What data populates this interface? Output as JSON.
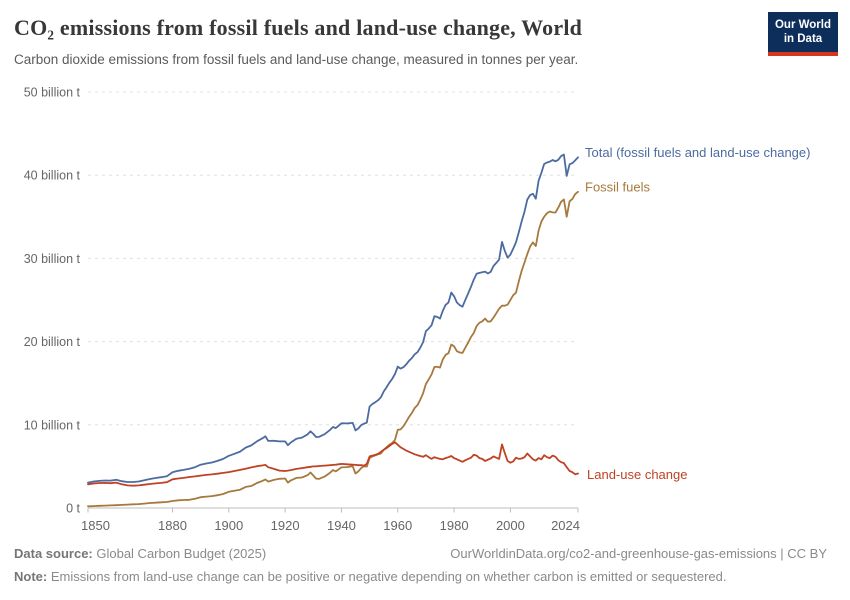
{
  "header": {
    "logo": {
      "line1": "Our World",
      "line2": "in Data",
      "bg_color": "#0d2e5a",
      "stripe_color": "#d8351e"
    }
  },
  "footer": {
    "source_label": "Data source:",
    "source_value": " Global Carbon Budget (2025)",
    "credit": "OurWorldinData.org/co2-and-greenhouse-gas-emissions | CC BY",
    "note_label": "Note:",
    "note_value": " Emissions from land-use change can be positive or negative depending on whether carbon is emitted or sequestered."
  },
  "chart_data": {
    "type": "line",
    "title": "CO₂ emissions from fossil fuels and land-use change, World",
    "subtitle": "Carbon dioxide emissions from fossil fuels and land-use change, measured in tonnes per year.",
    "xlabel": "",
    "ylabel": "",
    "unit": "billion tonnes of CO₂ per year",
    "xlim": [
      1850,
      2024
    ],
    "ylim": [
      0,
      50
    ],
    "grid": "dashed-horizontal",
    "legend_position": "end-of-line-labels",
    "x_ticks": [
      1850,
      1880,
      1900,
      1920,
      1940,
      1960,
      1980,
      2000,
      2024
    ],
    "y_ticks": [
      {
        "v": 0,
        "label": "0 t"
      },
      {
        "v": 10,
        "label": "10 billion t"
      },
      {
        "v": 20,
        "label": "20 billion t"
      },
      {
        "v": 30,
        "label": "30 billion t"
      },
      {
        "v": 40,
        "label": "40 billion t"
      },
      {
        "v": 50,
        "label": "50 billion t"
      }
    ],
    "x": [
      1850,
      1852,
      1854,
      1856,
      1858,
      1860,
      1862,
      1864,
      1866,
      1868,
      1870,
      1872,
      1874,
      1876,
      1878,
      1880,
      1882,
      1884,
      1886,
      1888,
      1890,
      1892,
      1894,
      1896,
      1898,
      1900,
      1902,
      1904,
      1906,
      1908,
      1910,
      1912,
      1913,
      1914,
      1916,
      1918,
      1920,
      1921,
      1922,
      1924,
      1926,
      1928,
      1929,
      1930,
      1931,
      1932,
      1934,
      1936,
      1937,
      1938,
      1940,
      1942,
      1944,
      1945,
      1946,
      1947,
      1948,
      1949,
      1950,
      1951,
      1952,
      1953,
      1954,
      1955,
      1956,
      1957,
      1958,
      1959,
      1960,
      1961,
      1962,
      1963,
      1964,
      1965,
      1966,
      1967,
      1968,
      1969,
      1970,
      1971,
      1972,
      1973,
      1974,
      1975,
      1976,
      1977,
      1978,
      1979,
      1980,
      1981,
      1982,
      1983,
      1984,
      1985,
      1986,
      1987,
      1988,
      1989,
      1990,
      1991,
      1992,
      1993,
      1994,
      1995,
      1996,
      1997,
      1998,
      1999,
      2000,
      2001,
      2002,
      2003,
      2004,
      2005,
      2006,
      2007,
      2008,
      2009,
      2010,
      2011,
      2012,
      2013,
      2014,
      2015,
      2016,
      2017,
      2018,
      2019,
      2020,
      2021,
      2022,
      2023,
      2024
    ],
    "series": [
      {
        "name": "Total (fossil fuels and land-use change)",
        "color": "#4c6ba1",
        "values": [
          3.05,
          3.18,
          3.26,
          3.31,
          3.29,
          3.39,
          3.22,
          3.13,
          3.12,
          3.19,
          3.33,
          3.48,
          3.6,
          3.7,
          3.82,
          4.29,
          4.47,
          4.58,
          4.71,
          4.9,
          5.2,
          5.35,
          5.47,
          5.66,
          5.9,
          6.27,
          6.52,
          6.78,
          7.26,
          7.52,
          8.02,
          8.39,
          8.62,
          8.07,
          8.08,
          8.01,
          8.0,
          7.55,
          7.87,
          8.32,
          8.46,
          8.86,
          9.22,
          8.91,
          8.53,
          8.55,
          8.87,
          9.4,
          9.74,
          9.6,
          10.18,
          10.17,
          10.23,
          9.33,
          9.55,
          9.96,
          10.13,
          10.27,
          12.2,
          12.5,
          12.7,
          12.96,
          13.3,
          14.0,
          14.5,
          15.05,
          15.5,
          16.1,
          17.0,
          16.75,
          16.92,
          17.26,
          17.69,
          18.03,
          18.47,
          18.72,
          19.28,
          19.94,
          21.25,
          21.56,
          21.97,
          23.05,
          22.97,
          22.77,
          23.7,
          24.41,
          24.71,
          25.9,
          25.44,
          24.7,
          24.39,
          24.19,
          25.04,
          25.79,
          26.6,
          27.45,
          28.16,
          28.26,
          28.34,
          28.41,
          28.19,
          28.39,
          29.09,
          29.46,
          29.86,
          31.98,
          30.91,
          30.08,
          30.46,
          31.18,
          31.93,
          33.18,
          34.47,
          35.61,
          37.07,
          37.62,
          37.77,
          37.18,
          39.34,
          40.29,
          41.36,
          41.53,
          41.64,
          41.83,
          41.67,
          41.85,
          42.3,
          42.48,
          39.91,
          41.31,
          41.45,
          41.78,
          42.15
        ]
      },
      {
        "name": "Fossil fuels",
        "color": "#a6793d",
        "values": [
          0.2,
          0.23,
          0.26,
          0.29,
          0.31,
          0.34,
          0.37,
          0.41,
          0.44,
          0.47,
          0.53,
          0.6,
          0.64,
          0.68,
          0.72,
          0.84,
          0.92,
          0.96,
          0.99,
          1.1,
          1.3,
          1.37,
          1.43,
          1.54,
          1.68,
          1.95,
          2.07,
          2.2,
          2.54,
          2.64,
          3.0,
          3.27,
          3.44,
          3.17,
          3.38,
          3.51,
          3.55,
          3.05,
          3.32,
          3.62,
          3.66,
          3.96,
          4.27,
          3.91,
          3.53,
          3.5,
          3.77,
          4.25,
          4.56,
          4.4,
          4.88,
          4.92,
          5.03,
          4.15,
          4.4,
          4.81,
          5.03,
          4.97,
          6.0,
          6.2,
          6.32,
          6.46,
          6.55,
          7.0,
          7.3,
          7.6,
          7.8,
          8.2,
          9.4,
          9.45,
          9.82,
          10.36,
          10.94,
          11.43,
          12.02,
          12.37,
          13.03,
          13.79,
          14.9,
          15.46,
          16.07,
          16.95,
          16.97,
          16.87,
          17.85,
          18.41,
          18.61,
          19.65,
          19.44,
          18.85,
          18.69,
          18.64,
          19.29,
          19.89,
          20.55,
          21.05,
          21.86,
          22.26,
          22.44,
          22.76,
          22.39,
          22.44,
          22.89,
          23.41,
          23.96,
          24.33,
          24.31,
          24.43,
          25.01,
          25.58,
          25.88,
          27.28,
          28.52,
          29.51,
          30.52,
          31.42,
          31.92,
          31.48,
          33.34,
          34.44,
          35.01,
          35.43,
          35.64,
          35.53,
          35.52,
          36.1,
          36.8,
          37.08,
          35.01,
          36.86,
          37.15,
          37.73,
          38.0
        ]
      },
      {
        "name": "Land-use change",
        "color": "#bf4224",
        "values": [
          2.85,
          2.95,
          3.0,
          3.02,
          2.98,
          3.05,
          2.85,
          2.72,
          2.68,
          2.72,
          2.8,
          2.88,
          2.96,
          3.02,
          3.1,
          3.45,
          3.55,
          3.62,
          3.72,
          3.8,
          3.9,
          3.98,
          4.04,
          4.12,
          4.22,
          4.32,
          4.45,
          4.58,
          4.72,
          4.88,
          5.02,
          5.12,
          5.18,
          4.9,
          4.7,
          4.5,
          4.45,
          4.5,
          4.55,
          4.7,
          4.8,
          4.9,
          4.95,
          5.0,
          5.0,
          5.05,
          5.1,
          5.15,
          5.18,
          5.2,
          5.3,
          5.25,
          5.2,
          5.18,
          5.15,
          5.15,
          5.1,
          5.3,
          6.2,
          6.3,
          6.38,
          6.5,
          6.75,
          7.0,
          7.2,
          7.45,
          7.7,
          7.9,
          7.6,
          7.3,
          7.1,
          6.9,
          6.75,
          6.6,
          6.45,
          6.35,
          6.25,
          6.15,
          6.35,
          6.1,
          5.9,
          6.1,
          6.0,
          5.9,
          5.85,
          6.0,
          6.1,
          6.25,
          6.0,
          5.85,
          5.7,
          5.55,
          5.75,
          5.9,
          6.05,
          6.4,
          6.3,
          6.0,
          5.9,
          5.65,
          5.8,
          5.95,
          6.2,
          6.05,
          5.9,
          7.65,
          6.6,
          5.65,
          5.45,
          5.6,
          6.05,
          5.9,
          5.95,
          6.1,
          6.55,
          6.2,
          5.85,
          5.7,
          6.0,
          5.85,
          6.35,
          6.1,
          6.0,
          6.3,
          6.15,
          5.75,
          5.5,
          5.4,
          4.9,
          4.45,
          4.3,
          4.05,
          4.15
        ]
      }
    ]
  }
}
